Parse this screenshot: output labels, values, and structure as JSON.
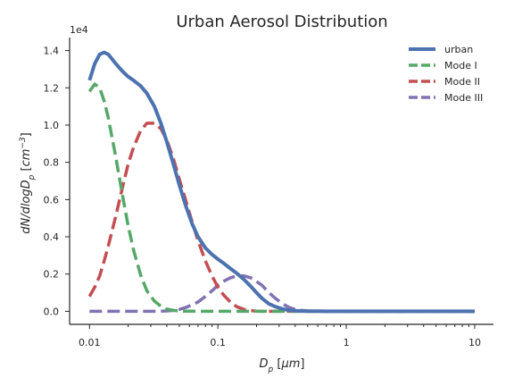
{
  "chart_data": {
    "type": "line",
    "title": "Urban Aerosol Distribution",
    "xlabel": "D_p [μm]",
    "ylabel": "dN/dlogD_p [cm^-3]",
    "xscale": "log",
    "xlim": [
      0.007,
      14
    ],
    "ylim": [
      -700,
      14700
    ],
    "y_multiplier_label": "1e4",
    "x_ticks": [
      {
        "value": 0.01,
        "label": "0.01"
      },
      {
        "value": 0.1,
        "label": "0.1"
      },
      {
        "value": 1,
        "label": "1"
      },
      {
        "value": 10,
        "label": "10"
      }
    ],
    "y_ticks": [
      {
        "value": 0,
        "label": "0.0"
      },
      {
        "value": 2000,
        "label": "0.2"
      },
      {
        "value": 4000,
        "label": "0.4"
      },
      {
        "value": 6000,
        "label": "0.6"
      },
      {
        "value": 8000,
        "label": "0.8"
      },
      {
        "value": 10000,
        "label": "1.0"
      },
      {
        "value": 12000,
        "label": "1.2"
      },
      {
        "value": 14000,
        "label": "1.4"
      }
    ],
    "x": [
      0.01,
      0.011,
      0.012,
      0.013,
      0.014,
      0.016,
      0.018,
      0.02,
      0.022,
      0.025,
      0.028,
      0.032,
      0.036,
      0.04,
      0.045,
      0.05,
      0.056,
      0.063,
      0.07,
      0.08,
      0.09,
      0.1,
      0.11,
      0.125,
      0.14,
      0.16,
      0.18,
      0.2,
      0.22,
      0.25,
      0.28,
      0.32,
      0.36,
      0.4,
      0.45,
      0.5,
      0.6,
      0.7,
      0.8,
      1.0,
      1.5,
      2,
      3,
      5,
      7,
      10
    ],
    "series": [
      {
        "name": "urban",
        "color": "#4c72b0",
        "style": "solid",
        "values": [
          12400,
          13300,
          13800,
          13900,
          13800,
          13300,
          12900,
          12600,
          12400,
          12100,
          11700,
          11000,
          10100,
          9100,
          7900,
          6800,
          5700,
          4700,
          4000,
          3400,
          3050,
          2800,
          2600,
          2300,
          2050,
          1700,
          1350,
          1000,
          700,
          400,
          250,
          120,
          60,
          30,
          15,
          8,
          3,
          1,
          0,
          0,
          0,
          0,
          0,
          0,
          0,
          0
        ]
      },
      {
        "name": "Mode I",
        "color": "#55a868",
        "style": "dashed",
        "values": [
          11800,
          12200,
          12000,
          11300,
          10400,
          8300,
          6300,
          4600,
          3300,
          1950,
          1100,
          550,
          270,
          120,
          50,
          20,
          8,
          3,
          1,
          0,
          0,
          0,
          0,
          0,
          0,
          0,
          0,
          0,
          0,
          0,
          0,
          0,
          0,
          0,
          0,
          0,
          0,
          0,
          0,
          0,
          0,
          0,
          0,
          0,
          0,
          0
        ]
      },
      {
        "name": "Mode II",
        "color": "#c44e52",
        "style": "dashed",
        "values": [
          800,
          1300,
          1900,
          2700,
          3500,
          5100,
          6600,
          7900,
          8800,
          9700,
          10100,
          10100,
          9800,
          9200,
          8200,
          7100,
          6000,
          4800,
          3800,
          2700,
          1900,
          1300,
          900,
          500,
          250,
          100,
          40,
          10,
          0,
          0,
          0,
          0,
          0,
          0,
          0,
          0,
          0,
          0,
          0,
          0,
          0,
          0,
          0,
          0,
          0,
          0
        ]
      },
      {
        "name": "Mode III",
        "color": "#8172b2",
        "style": "dashed",
        "values": [
          0,
          0,
          0,
          0,
          0,
          0,
          0,
          0,
          0,
          0,
          0,
          0,
          10,
          20,
          50,
          100,
          200,
          350,
          500,
          800,
          1100,
          1400,
          1600,
          1800,
          1900,
          1900,
          1800,
          1600,
          1400,
          1000,
          700,
          400,
          200,
          100,
          50,
          20,
          5,
          0,
          0,
          0,
          0,
          0,
          0,
          0,
          0,
          0
        ]
      }
    ],
    "legend": {
      "location": "top-right",
      "entries": [
        "urban",
        "Mode I",
        "Mode II",
        "Mode III"
      ]
    },
    "grid": false
  }
}
